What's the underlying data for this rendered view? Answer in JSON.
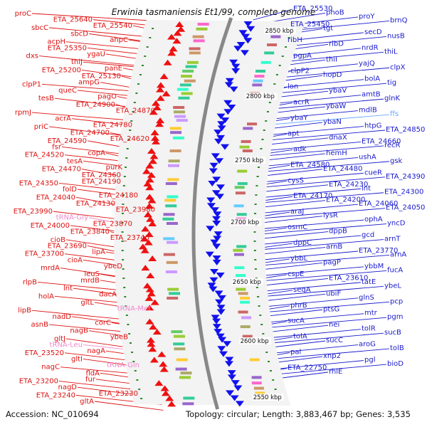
{
  "title": "Erwinia tasmaniensis Et1/99, complete genome",
  "accession": "Accession: NC_010694",
  "summary": "Topology: circular; Length: 3,883,467 bp; Genes: 3,535",
  "colors": {
    "left_gene": "#dd1111",
    "right_gene": "#1a1acc",
    "rna": "#ee88cc",
    "backbone": "#888888",
    "cds_red": "#ee1111",
    "cds_blue": "#1111ee",
    "tick": "#2a8a2a"
  },
  "kbp_marks": [
    "2850 kbp",
    "2800 kbp",
    "2750 kbp",
    "2700 kbp",
    "2650 kbp",
    "2600 kbp",
    "2550 kbp"
  ],
  "left_labels": [
    "proC",
    "ETA_25640",
    "ETA_25540",
    "sbcC",
    "sbcD",
    "ahpC",
    "acpH",
    "ETA_25350",
    "ygaU",
    "dxs",
    "thiJ",
    "panE",
    "ETA_25200",
    "ETA_25130",
    "ampG",
    "clpP1",
    "queC",
    "pagO",
    "tesB",
    "ETA_24900",
    "ETA_24870",
    "rpmJ",
    "acrA",
    "ETA_24780",
    "priC",
    "ETA_24700",
    "ETA_24620",
    "ETA_24590",
    "fsr",
    "copA",
    "ETA_24520",
    "tesA",
    "purK",
    "ETA_24470",
    "ETA_24360",
    "ETA_24190",
    "ETA_24350",
    "folD",
    "ETA_24180",
    "ETA_24040",
    "ETA_24130",
    "ETA_23980",
    "ETA_23990",
    "tRNA-Gly",
    "ETA_23870",
    "ETA_24000",
    "ETA_23840",
    "ETA_23740",
    "cioB",
    "ETA_23690",
    "lipA",
    "ETA_23700",
    "cioA",
    "ybeD",
    "mrdA",
    "leuS",
    "mrdB",
    "rlpB",
    "lnt",
    "dacA",
    "holA",
    "gltL",
    "tRNA-Met",
    "lipB",
    "nadD",
    "corC",
    "asnB",
    "nagB",
    "ybeB",
    "gltJ",
    "tRNA-Leu",
    "nagA",
    "ETA_23520",
    "gltI",
    "tRNA-Gln",
    "nagC",
    "fldA",
    "fur",
    "ETA_23200",
    "nagD",
    "ETA_23230",
    "ETA_23240",
    "gltA"
  ],
  "right_labels": [
    "ETA_25530",
    "phoB",
    "proY",
    "brnQ",
    "ETA_25450",
    "tgt",
    "secD",
    "nusB",
    "ribH",
    "ribD",
    "nrdR",
    "thiL",
    "pgpA",
    "thiI",
    "yajQ",
    "clpX",
    "clpP2",
    "hopD",
    "bolA",
    "tig",
    "lon",
    "ybaV",
    "amtB",
    "glnK",
    "acrR",
    "ybaW",
    "mdlB",
    "ffs",
    "ybaY",
    "ybaN",
    "htpG",
    "ETA_24850",
    "apt",
    "dnaX",
    "ETA_24660",
    "recR",
    "adk",
    "hemH",
    "ushA",
    "gsk",
    "ETA_24580",
    "ETA_24480",
    "cueR",
    "ETA_24390",
    "cysS",
    "ETA_24230",
    "lnt",
    "ETA_24300",
    "ETA_24170",
    "ETA_24200",
    "ETA_24060",
    "ETA_24050",
    "araJ",
    "lysR",
    "ophA",
    "yncD",
    "osmC",
    "dppB",
    "gcd",
    "arnT",
    "dppC",
    "arnB",
    "ETA_23770",
    "arnA",
    "ybbL",
    "pagP",
    "ybbM",
    "fucA",
    "cspE",
    "ETA_23610",
    "tatE",
    "ybeL",
    "seqA",
    "ubiF",
    "glnS",
    "pcp",
    "phrB",
    "ptsG",
    "mtr",
    "pgm",
    "sucA",
    "nei",
    "tolR",
    "sucB",
    "tolA",
    "sucC",
    "aroG",
    "tolB",
    "pal",
    "xnp2",
    "pgl",
    "bioD",
    "ETA_22750",
    "rhlE"
  ]
}
